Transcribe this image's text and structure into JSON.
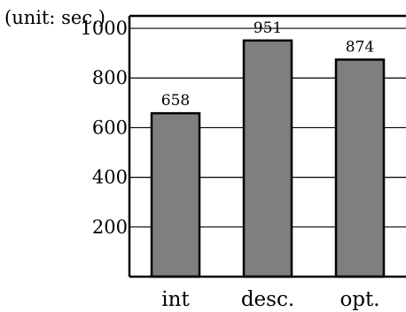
{
  "chart_data": {
    "type": "bar",
    "unit_label": "(unit: sec.)",
    "categories": [
      "int",
      "desc.",
      "opt."
    ],
    "values": [
      658,
      951,
      874
    ],
    "data_labels": [
      "658",
      "951",
      "874"
    ],
    "ylim": [
      0,
      1050
    ],
    "yticks": [
      200,
      400,
      600,
      800,
      1000
    ],
    "ytick_labels": [
      "200",
      "400",
      "600",
      "800",
      "1000"
    ],
    "grid": true,
    "legend": "none",
    "colors": {
      "bar": "#7f7f7f",
      "bar_stroke": "#000000",
      "axis": "#000000",
      "grid": "#000000"
    }
  }
}
